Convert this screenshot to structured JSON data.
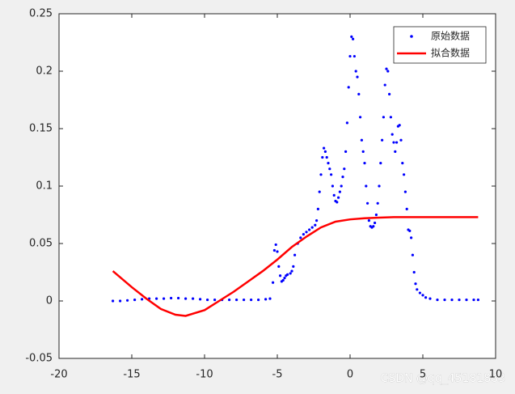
{
  "chart_data": {
    "type": "line",
    "xlim": [
      -20,
      10
    ],
    "xticks": [
      -20,
      -15,
      -10,
      -5,
      0,
      5,
      10
    ],
    "ylim": [
      -0.05,
      0.25
    ],
    "yticks": [
      -0.05,
      0,
      0.05,
      0.1,
      0.15,
      0.2,
      0.25
    ],
    "legend": "northeast",
    "series": [
      {
        "name": "原始数据",
        "color": "#0000ff",
        "mode": "markers",
        "x": [
          -16.3,
          -15.8,
          -15.3,
          -14.8,
          -14.3,
          -13.8,
          -13.3,
          -12.8,
          -12.3,
          -11.8,
          -11.3,
          -10.8,
          -10.3,
          -9.8,
          -9.3,
          -8.8,
          -8.3,
          -7.8,
          -7.3,
          -6.8,
          -6.3,
          -5.8,
          -5.5,
          -5.3,
          -5.2,
          -5.1,
          -5.0,
          -4.9,
          -4.8,
          -4.7,
          -4.6,
          -4.5,
          -4.4,
          -4.3,
          -4.1,
          -4.0,
          -3.9,
          -3.8,
          -3.6,
          -3.4,
          -3.2,
          -3.0,
          -2.8,
          -2.6,
          -2.4,
          -2.3,
          -2.2,
          -2.1,
          -2.0,
          -1.9,
          -1.8,
          -1.7,
          -1.6,
          -1.5,
          -1.4,
          -1.3,
          -1.2,
          -1.1,
          -1.0,
          -0.9,
          -0.8,
          -0.7,
          -0.6,
          -0.5,
          -0.4,
          -0.3,
          -0.2,
          -0.1,
          0.0,
          0.1,
          0.2,
          0.3,
          0.4,
          0.5,
          0.6,
          0.7,
          0.8,
          0.9,
          1.0,
          1.1,
          1.2,
          1.3,
          1.4,
          1.5,
          1.6,
          1.7,
          1.8,
          1.9,
          2.0,
          2.1,
          2.2,
          2.3,
          2.4,
          2.5,
          2.6,
          2.7,
          2.8,
          2.9,
          3.0,
          3.1,
          3.2,
          3.3,
          3.4,
          3.5,
          3.6,
          3.7,
          3.8,
          3.9,
          4.0,
          4.1,
          4.2,
          4.3,
          4.4,
          4.5,
          4.6,
          4.8,
          5.0,
          5.2,
          5.5,
          6.0,
          6.5,
          7.0,
          7.5,
          8.0,
          8.5,
          8.8
        ],
        "values": [
          0.0,
          0.0,
          0.0005,
          0.001,
          0.0015,
          0.002,
          0.002,
          0.002,
          0.0025,
          0.0025,
          0.002,
          0.002,
          0.0015,
          0.001,
          0.001,
          0.001,
          0.001,
          0.001,
          0.001,
          0.001,
          0.001,
          0.0015,
          0.002,
          0.016,
          0.044,
          0.049,
          0.043,
          0.03,
          0.022,
          0.017,
          0.018,
          0.02,
          0.022,
          0.023,
          0.024,
          0.026,
          0.03,
          0.04,
          0.05,
          0.055,
          0.058,
          0.06,
          0.062,
          0.064,
          0.066,
          0.07,
          0.08,
          0.095,
          0.11,
          0.125,
          0.133,
          0.13,
          0.125,
          0.12,
          0.115,
          0.11,
          0.1,
          0.092,
          0.087,
          0.086,
          0.09,
          0.095,
          0.1,
          0.108,
          0.115,
          0.13,
          0.155,
          0.186,
          0.213,
          0.23,
          0.228,
          0.213,
          0.2,
          0.195,
          0.18,
          0.16,
          0.14,
          0.13,
          0.12,
          0.1,
          0.085,
          0.07,
          0.065,
          0.064,
          0.065,
          0.068,
          0.075,
          0.085,
          0.1,
          0.12,
          0.14,
          0.16,
          0.188,
          0.202,
          0.2,
          0.18,
          0.16,
          0.145,
          0.138,
          0.13,
          0.138,
          0.152,
          0.153,
          0.14,
          0.12,
          0.11,
          0.095,
          0.08,
          0.062,
          0.061,
          0.055,
          0.04,
          0.025,
          0.015,
          0.01,
          0.007,
          0.005,
          0.003,
          0.002,
          0.001,
          0.001,
          0.001,
          0.001,
          0.001,
          0.001,
          0.001
        ]
      },
      {
        "name": "拟合数据",
        "color": "#ff0000",
        "mode": "lines",
        "x": [
          -16.3,
          -15,
          -14,
          -13,
          -12,
          -11.3,
          -10,
          -9,
          -8,
          -7,
          -6,
          -5,
          -4,
          -3,
          -2,
          -1,
          0,
          1,
          2,
          3,
          4,
          5,
          6,
          7,
          8,
          8.8
        ],
        "values": [
          0.026,
          0.012,
          0.002,
          -0.007,
          -0.012,
          -0.013,
          -0.008,
          0.0,
          0.008,
          0.017,
          0.026,
          0.036,
          0.047,
          0.056,
          0.064,
          0.069,
          0.071,
          0.072,
          0.0725,
          0.073,
          0.073,
          0.073,
          0.073,
          0.073,
          0.073,
          0.073
        ]
      }
    ]
  },
  "watermark": "CSDN @qq_45181883"
}
